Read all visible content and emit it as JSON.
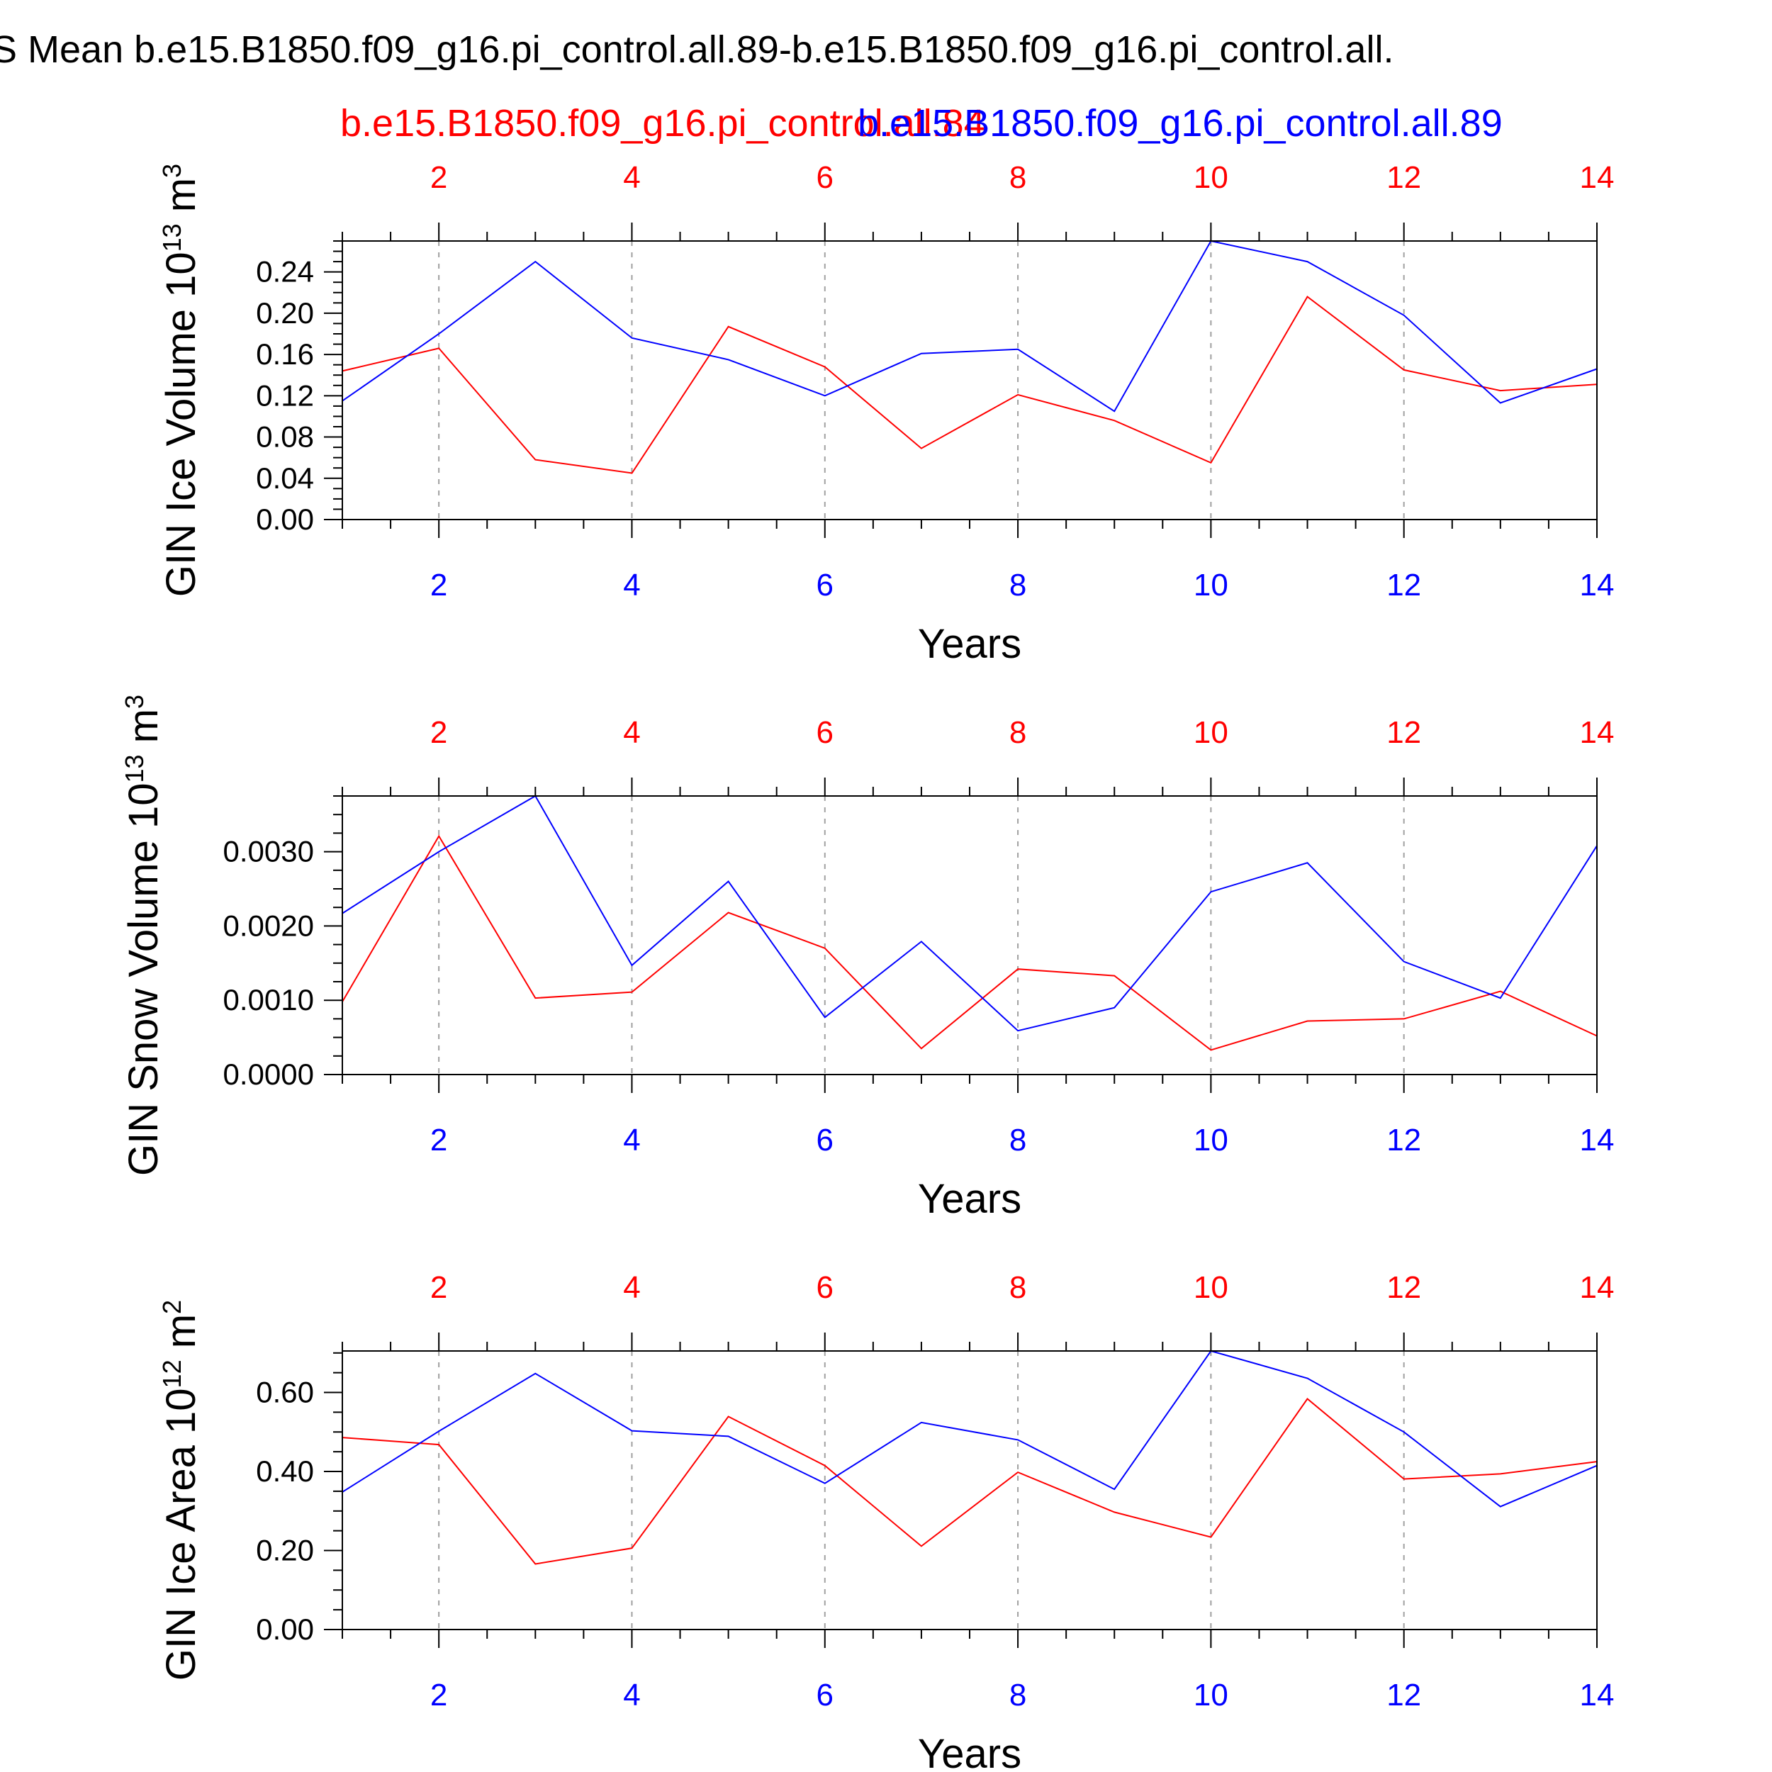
{
  "figure": {
    "title": "S Mean b.e15.B1850.f09_g16.pi_control.all.89-b.e15.B1850.f09_g16.pi_control.all.",
    "series_labels": [
      {
        "name": "b.e15.B1850.f09_g16.pi_control.all.84",
        "color": "#ff0000"
      },
      {
        "name": "b.e15.B1850.f09_g16.pi_control.all.89",
        "color": "#0000ff"
      }
    ],
    "colors": {
      "series_red": "#ff0000",
      "series_blue": "#0000ff",
      "axis": "#000000",
      "grid": "#a0a0a0"
    }
  },
  "chart_data": [
    {
      "type": "line",
      "title": "",
      "xlabel": "Years",
      "ylabel": "GIN Ice Volume 10",
      "ylabel_exp": "13",
      "ylabel_unit": " m",
      "ylabel_unit_exp": "3",
      "x": [
        1,
        2,
        3,
        4,
        5,
        6,
        7,
        8,
        9,
        10,
        11,
        12,
        13,
        14
      ],
      "xlim": [
        1,
        14
      ],
      "ylim": [
        0,
        0.27
      ],
      "xticks": [
        2,
        4,
        6,
        8,
        10,
        12,
        14
      ],
      "xtick_labels": [
        "2",
        "4",
        "6",
        "8",
        "10",
        "12",
        "14"
      ],
      "yticks": [
        0,
        0.04,
        0.08,
        0.12,
        0.16,
        0.2,
        0.24
      ],
      "ytick_labels": [
        "0.00",
        "0.04",
        "0.08",
        "0.12",
        "0.16",
        "0.20",
        "0.24"
      ],
      "series": [
        {
          "name": "b.e15.B1850.f09_g16.pi_control.all.84",
          "color": "#ff0000",
          "values": [
            0.144,
            0.166,
            0.058,
            0.045,
            0.187,
            0.148,
            0.069,
            0.121,
            0.096,
            0.055,
            0.216,
            0.145,
            0.125,
            0.131
          ]
        },
        {
          "name": "b.e15.B1850.f09_g16.pi_control.all.89",
          "color": "#0000ff",
          "values": [
            0.115,
            0.18,
            0.25,
            0.176,
            0.155,
            0.12,
            0.161,
            0.165,
            0.105,
            0.27,
            0.25,
            0.198,
            0.113,
            0.146
          ]
        }
      ]
    },
    {
      "type": "line",
      "title": "",
      "xlabel": "Years",
      "ylabel": "GIN Snow Volume 10",
      "ylabel_exp": "13",
      "ylabel_unit": " m",
      "ylabel_unit_exp": "3",
      "x": [
        1,
        2,
        3,
        4,
        5,
        6,
        7,
        8,
        9,
        10,
        11,
        12,
        13,
        14
      ],
      "xlim": [
        1,
        14
      ],
      "ylim": [
        0,
        0.00375
      ],
      "xticks": [
        2,
        4,
        6,
        8,
        10,
        12,
        14
      ],
      "xtick_labels": [
        "2",
        "4",
        "6",
        "8",
        "10",
        "12",
        "14"
      ],
      "yticks": [
        0,
        0.001,
        0.002,
        0.003
      ],
      "ytick_labels": [
        "0.0000",
        "0.0010",
        "0.0020",
        "0.0030"
      ],
      "series": [
        {
          "name": "b.e15.B1850.f09_g16.pi_control.all.84",
          "color": "#ff0000",
          "values": [
            0.00098,
            0.00321,
            0.00103,
            0.00111,
            0.00218,
            0.0017,
            0.00035,
            0.00142,
            0.00133,
            0.00033,
            0.00072,
            0.00075,
            0.00112,
            0.00052
          ]
        },
        {
          "name": "b.e15.B1850.f09_g16.pi_control.all.89",
          "color": "#0000ff",
          "values": [
            0.00217,
            0.003,
            0.00375,
            0.00147,
            0.0026,
            0.00077,
            0.00179,
            0.00059,
            0.0009,
            0.00246,
            0.00285,
            0.00152,
            0.00103,
            0.00308
          ]
        }
      ]
    },
    {
      "type": "line",
      "title": "",
      "xlabel": "Years",
      "ylabel": "GIN Ice Area 10",
      "ylabel_exp": "12",
      "ylabel_unit": " m",
      "ylabel_unit_exp": "2",
      "x": [
        1,
        2,
        3,
        4,
        5,
        6,
        7,
        8,
        9,
        10,
        11,
        12,
        13,
        14
      ],
      "xlim": [
        1,
        14
      ],
      "ylim": [
        0,
        0.705
      ],
      "xticks": [
        2,
        4,
        6,
        8,
        10,
        12,
        14
      ],
      "xtick_labels": [
        "2",
        "4",
        "6",
        "8",
        "10",
        "12",
        "14"
      ],
      "yticks": [
        0,
        0.2,
        0.4,
        0.6
      ],
      "ytick_labels": [
        "0.00",
        "0.20",
        "0.40",
        "0.60"
      ],
      "series": [
        {
          "name": "b.e15.B1850.f09_g16.pi_control.all.84",
          "color": "#ff0000",
          "values": [
            0.486,
            0.468,
            0.166,
            0.206,
            0.539,
            0.415,
            0.211,
            0.398,
            0.297,
            0.234,
            0.584,
            0.381,
            0.394,
            0.425
          ]
        },
        {
          "name": "b.e15.B1850.f09_g16.pi_control.all.89",
          "color": "#0000ff",
          "values": [
            0.348,
            0.502,
            0.648,
            0.503,
            0.489,
            0.37,
            0.524,
            0.48,
            0.355,
            0.705,
            0.636,
            0.5,
            0.311,
            0.415
          ]
        }
      ]
    }
  ]
}
